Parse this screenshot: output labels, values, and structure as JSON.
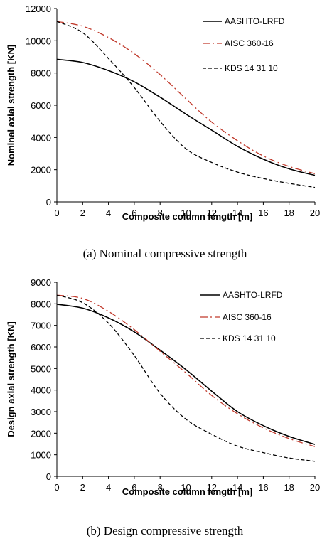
{
  "chart_data": [
    {
      "type": "line",
      "caption": "(a) Nominal compressive strength",
      "xlabel": "Composite column length [m]",
      "ylabel": "Nominal axial strength [KN]",
      "xlim": [
        0,
        20
      ],
      "ylim": [
        0,
        12000
      ],
      "xticks": [
        0,
        2,
        4,
        6,
        8,
        10,
        12,
        14,
        16,
        18,
        20
      ],
      "yticks": [
        0,
        2000,
        4000,
        6000,
        8000,
        10000,
        12000
      ],
      "legend_position": "top-right",
      "grid": false,
      "series": [
        {
          "name": "AASHTO-LRFD",
          "style": "solid",
          "color": "#000000",
          "x": [
            0,
            2,
            4,
            6,
            8,
            10,
            12,
            14,
            16,
            18,
            20
          ],
          "y": [
            8850,
            8650,
            8150,
            7450,
            6500,
            5450,
            4450,
            3450,
            2650,
            2050,
            1650
          ]
        },
        {
          "name": "AISC 360-16",
          "style": "dashdot",
          "color": "#c0392b",
          "x": [
            0,
            2,
            4,
            6,
            8,
            10,
            12,
            14,
            16,
            18,
            20
          ],
          "y": [
            11200,
            10900,
            10200,
            9200,
            7900,
            6400,
            4950,
            3800,
            2850,
            2200,
            1750
          ]
        },
        {
          "name": "KDS 14 31 10",
          "style": "dashed",
          "color": "#000000",
          "x": [
            0,
            2,
            4,
            6,
            8,
            10,
            12,
            14,
            16,
            18,
            20
          ],
          "y": [
            11200,
            10500,
            8900,
            7100,
            5000,
            3300,
            2450,
            1850,
            1450,
            1150,
            900
          ]
        }
      ]
    },
    {
      "type": "line",
      "caption": "(b) Design compressive strength",
      "xlabel": "Composite column length [m]",
      "ylabel": "Design axial strength [KN]",
      "xlim": [
        0,
        20
      ],
      "ylim": [
        0,
        9000
      ],
      "xticks": [
        0,
        2,
        4,
        6,
        8,
        10,
        12,
        14,
        16,
        18,
        20
      ],
      "yticks": [
        0,
        1000,
        2000,
        3000,
        4000,
        5000,
        6000,
        7000,
        8000,
        9000
      ],
      "legend_position": "top-right",
      "grid": false,
      "series": [
        {
          "name": "AASHTO-LRFD",
          "style": "solid",
          "color": "#000000",
          "x": [
            0,
            2,
            4,
            6,
            8,
            10,
            12,
            14,
            16,
            18,
            20
          ],
          "y": [
            7980,
            7800,
            7350,
            6700,
            5850,
            4950,
            3950,
            3000,
            2350,
            1850,
            1480
          ]
        },
        {
          "name": "AISC 360-16",
          "style": "dashdot",
          "color": "#c0392b",
          "x": [
            0,
            2,
            4,
            6,
            8,
            10,
            12,
            14,
            16,
            18,
            20
          ],
          "y": [
            8400,
            8250,
            7650,
            6800,
            5800,
            4800,
            3750,
            2900,
            2250,
            1750,
            1380
          ]
        },
        {
          "name": "KDS 14 31 10",
          "style": "dashed",
          "color": "#000000",
          "x": [
            0,
            2,
            4,
            6,
            8,
            10,
            12,
            14,
            16,
            18,
            20
          ],
          "y": [
            8400,
            8050,
            7100,
            5600,
            3850,
            2650,
            1950,
            1400,
            1100,
            850,
            700
          ]
        }
      ]
    }
  ]
}
